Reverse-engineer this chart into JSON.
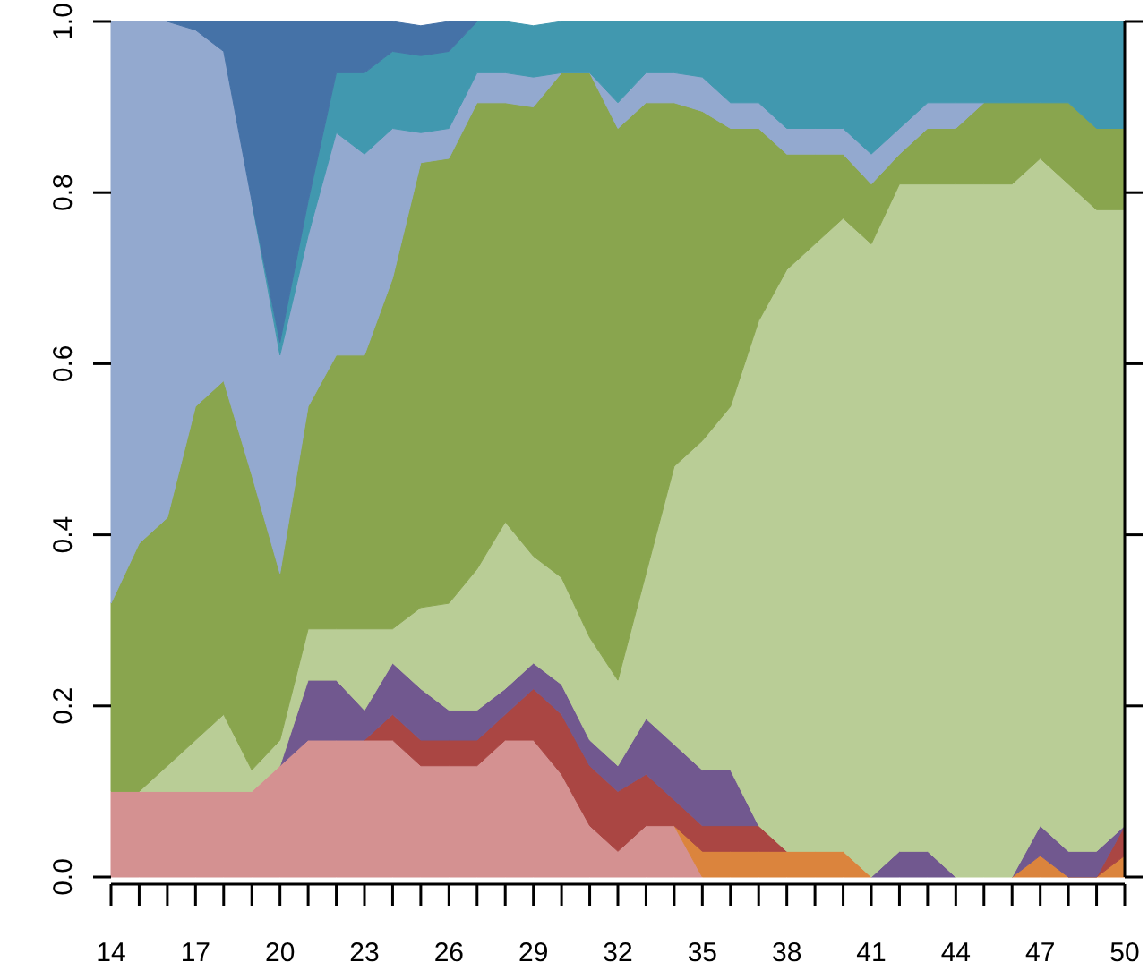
{
  "chart_data": {
    "type": "area",
    "stacked": true,
    "x": [
      14,
      15,
      16,
      17,
      18,
      19,
      20,
      21,
      22,
      23,
      24,
      25,
      26,
      27,
      28,
      29,
      30,
      31,
      32,
      33,
      34,
      35,
      36,
      37,
      38,
      39,
      40,
      41,
      42,
      43,
      44,
      45,
      46,
      47,
      48,
      49,
      50
    ],
    "xlim": [
      14,
      50
    ],
    "xticks": [
      14,
      {
        "value": 15,
        "label": null
      },
      {
        "value": 16,
        "label": null
      },
      17,
      {
        "value": 18,
        "label": null
      },
      {
        "value": 19,
        "label": null
      },
      20,
      {
        "value": 21,
        "label": null
      },
      {
        "value": 22,
        "label": null
      },
      23,
      {
        "value": 24,
        "label": null
      },
      {
        "value": 25,
        "label": null
      },
      26,
      {
        "value": 27,
        "label": null
      },
      {
        "value": 28,
        "label": null
      },
      29,
      {
        "value": 30,
        "label": null
      },
      {
        "value": 31,
        "label": null
      },
      32,
      {
        "value": 33,
        "label": null
      },
      {
        "value": 34,
        "label": null
      },
      35,
      {
        "value": 36,
        "label": null
      },
      {
        "value": 37,
        "label": null
      },
      38,
      {
        "value": 39,
        "label": null
      },
      {
        "value": 40,
        "label": null
      },
      41,
      {
        "value": 42,
        "label": null
      },
      {
        "value": 43,
        "label": null
      },
      44,
      {
        "value": 45,
        "label": null
      },
      {
        "value": 46,
        "label": null
      },
      47,
      {
        "value": 48,
        "label": null
      },
      {
        "value": 49,
        "label": null
      },
      50
    ],
    "ylim": [
      0,
      1
    ],
    "yticks": [
      {
        "value": 0,
        "label": "0.0"
      },
      {
        "value": 0.2,
        "label": "0.2"
      },
      {
        "value": 0.4,
        "label": "0.4"
      },
      {
        "value": 0.6,
        "label": "0.6"
      },
      {
        "value": 0.8,
        "label": "0.8"
      },
      {
        "value": 1,
        "label": "1.0"
      }
    ],
    "series": [
      {
        "color": "#d49191",
        "values": [
          0.1,
          0.1,
          0.1,
          0.1,
          0.1,
          0.1,
          0.13,
          0.16,
          0.16,
          0.16,
          0.16,
          0.13,
          0.13,
          0.13,
          0.16,
          0.16,
          0.12,
          0.06,
          0.03,
          0.06,
          0.06,
          0,
          null,
          null,
          null,
          null,
          null,
          null,
          null,
          null,
          null,
          null,
          null,
          null,
          null,
          null,
          null
        ]
      },
      {
        "color": "#db843d",
        "values": [
          null,
          null,
          null,
          null,
          null,
          null,
          null,
          null,
          null,
          null,
          null,
          null,
          null,
          null,
          null,
          null,
          null,
          null,
          null,
          null,
          0,
          0.03,
          0.03,
          0.03,
          0.03,
          0.03,
          0.03,
          0,
          null,
          null,
          null,
          null,
          0,
          0.025,
          0,
          0,
          0.025
        ]
      },
      {
        "color": "#aa4643",
        "values": [
          null,
          null,
          null,
          null,
          null,
          null,
          null,
          null,
          null,
          0,
          0.03,
          0.03,
          0.03,
          0.03,
          0.03,
          0.06,
          0.07,
          0.07,
          0.07,
          0.06,
          0.03,
          0.03,
          0.03,
          0.03,
          0,
          null,
          null,
          null,
          null,
          null,
          null,
          null,
          null,
          null,
          null,
          0,
          0.035
        ]
      },
      {
        "color": "#71588f",
        "values": [
          null,
          null,
          null,
          null,
          null,
          null,
          0,
          0.07,
          0.07,
          0.035,
          0.06,
          0.06,
          0.035,
          0.035,
          0.03,
          0.03,
          0.035,
          0.03,
          0.03,
          0.065,
          0.065,
          0.065,
          0.065,
          0,
          null,
          null,
          null,
          0,
          0.03,
          0.03,
          0,
          null,
          0,
          0.035,
          0.03,
          0.03,
          0
        ]
      },
      {
        "color": "#b9cd96",
        "values": [
          null,
          0,
          0.03,
          0.06,
          0.09,
          0.025,
          0.03,
          0.06,
          0.06,
          0.095,
          0.04,
          0.095,
          0.125,
          0.165,
          0.195,
          0.125,
          0.125,
          0.12,
          0.1,
          0.17,
          0.325,
          0.385,
          0.425,
          0.59,
          0.68,
          0.71,
          0.74,
          0.74,
          0.78,
          0.78,
          0.81,
          0.81,
          0.81,
          0.78,
          0.78,
          0.75,
          0.72
        ]
      },
      {
        "color": "#89a54e",
        "values": [
          0.22,
          0.29,
          0.29,
          0.39,
          0.39,
          0.345,
          0.195,
          0.26,
          0.32,
          0.32,
          0.41,
          0.52,
          0.52,
          0.545,
          0.49,
          0.525,
          0.59,
          0.66,
          0.645,
          0.55,
          0.425,
          0.385,
          0.325,
          0.225,
          0.135,
          0.105,
          0.075,
          0.07,
          0.035,
          0.065,
          0.065,
          0.095,
          0.095,
          0.065,
          0.095,
          0.095,
          0.095
        ]
      },
      {
        "color": "#93a9cf",
        "values": [
          0.68,
          0.61,
          0.58,
          0.44,
          0.385,
          0.32,
          0.255,
          0.2,
          0.26,
          0.235,
          0.175,
          0.035,
          0.035,
          0.035,
          0.035,
          0.035,
          0,
          0,
          0.03,
          0.035,
          0.035,
          0.04,
          0.03,
          0.03,
          0.03,
          0.03,
          0.03,
          0.035,
          0.03,
          0.03,
          0.03,
          0,
          null,
          null,
          null,
          null,
          null
        ]
      },
      {
        "color": "#4198af",
        "values": [
          null,
          null,
          null,
          null,
          null,
          0,
          0.015,
          0.04,
          0.07,
          0.095,
          0.09,
          0.09,
          0.09,
          0.06,
          0.06,
          0.06,
          0.06,
          0.06,
          0.095,
          0.06,
          0.06,
          0.065,
          0.095,
          0.095,
          0.125,
          0.125,
          0.125,
          0.155,
          0.125,
          0.095,
          0.095,
          0.095,
          0.095,
          0.095,
          0.095,
          0.125,
          0.125
        ]
      },
      {
        "color": "#4572a7",
        "values": [
          null,
          null,
          0,
          0.01,
          0.035,
          0.21,
          0.375,
          0.21,
          0.06,
          0.06,
          0.035,
          0.035,
          0.035,
          0,
          null,
          null,
          null,
          null,
          null,
          null,
          null,
          null,
          null,
          null,
          null,
          null,
          null,
          null,
          null,
          null,
          null,
          null,
          null,
          null,
          null,
          null,
          null
        ]
      }
    ]
  }
}
